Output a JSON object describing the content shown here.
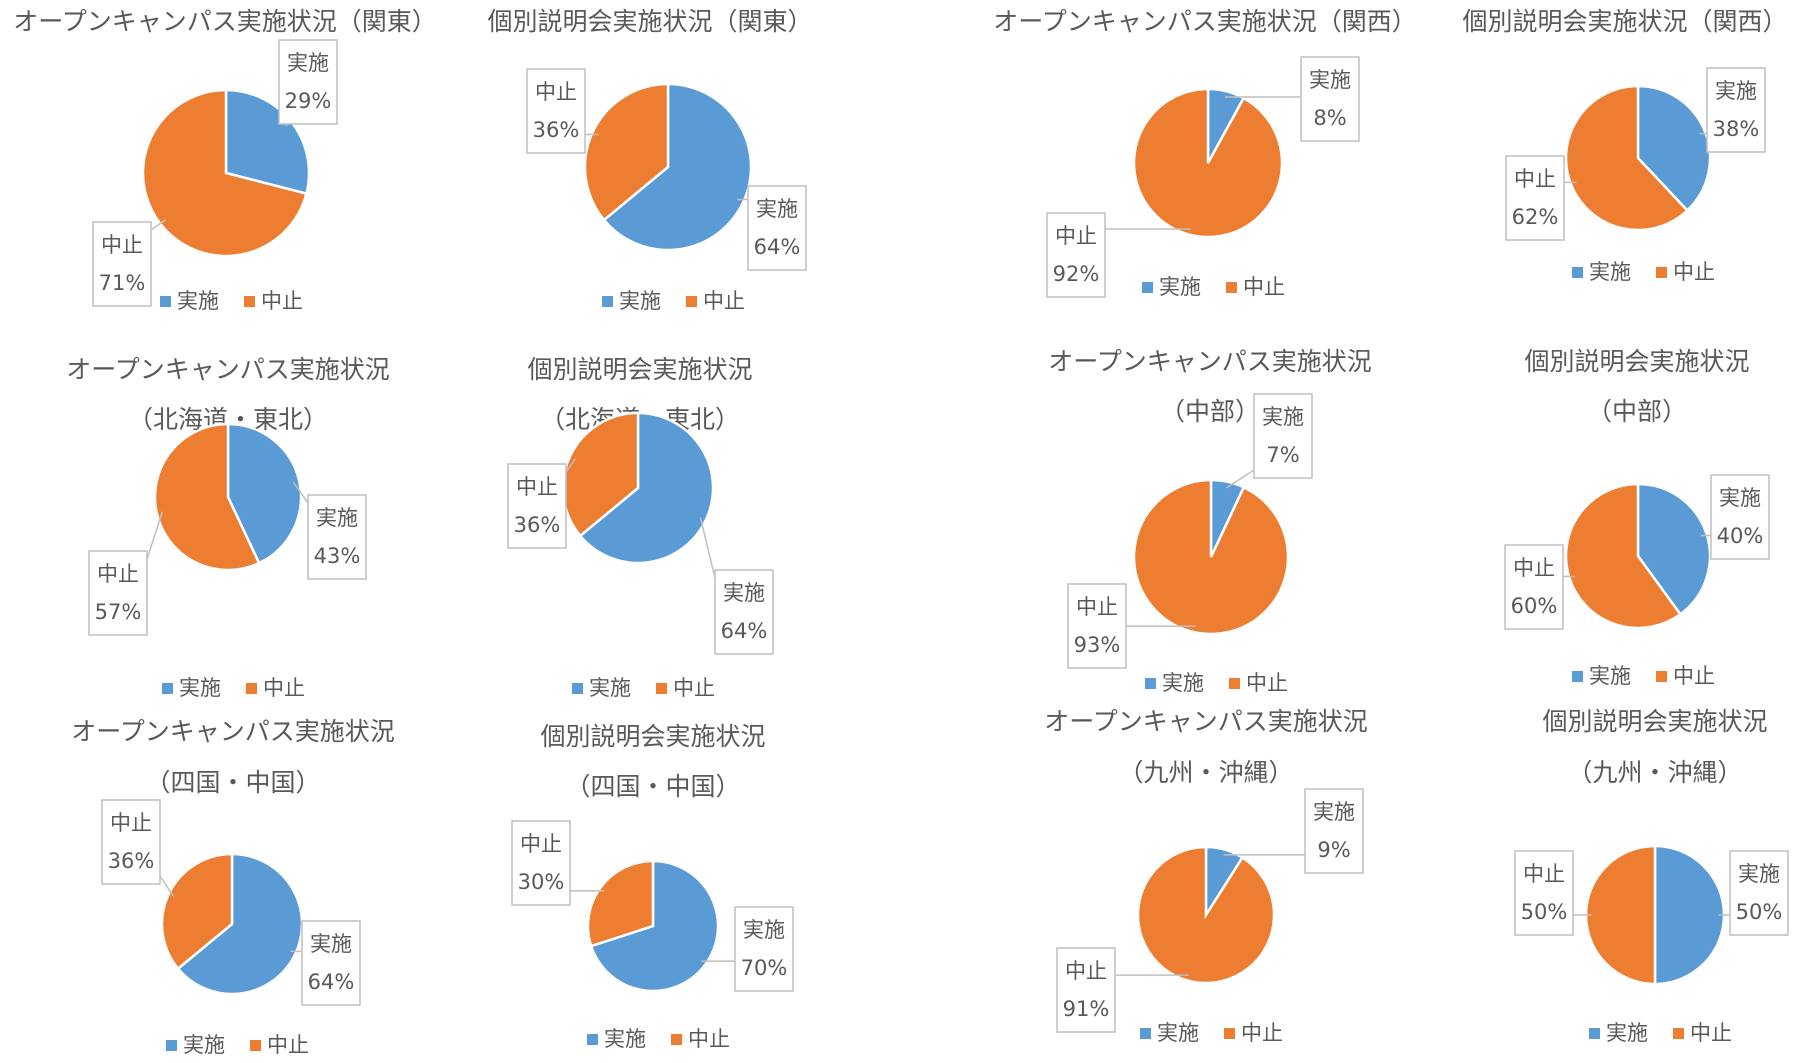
{
  "colors": {
    "series_jisshi": "#5b9bd5",
    "series_chushi": "#ed7d31"
  },
  "chart_data": [
    {
      "type": "pie",
      "title_lines": [
        "オープンキャンパス実施状況（関東）"
      ],
      "categories": [
        "実施",
        "中止"
      ],
      "values": [
        29,
        71
      ],
      "labels": [
        "29%",
        "71%"
      ],
      "legend": [
        "実施",
        "中止"
      ],
      "legend_position": "bottom"
    },
    {
      "type": "pie",
      "title_lines": [
        "個別説明会実施状況（関東）"
      ],
      "categories": [
        "実施",
        "中止"
      ],
      "values": [
        64,
        36
      ],
      "labels": [
        "64%",
        "36%"
      ],
      "legend": [
        "実施",
        "中止"
      ],
      "legend_position": "bottom"
    },
    {
      "type": "pie",
      "title_lines": [
        "オープンキャンパス実施状況（関西）"
      ],
      "categories": [
        "実施",
        "中止"
      ],
      "values": [
        8,
        92
      ],
      "labels": [
        "8%",
        "92%"
      ],
      "legend": [
        "実施",
        "中止"
      ],
      "legend_position": "bottom"
    },
    {
      "type": "pie",
      "title_lines": [
        "個別説明会実施状況（関西）"
      ],
      "categories": [
        "実施",
        "中止"
      ],
      "values": [
        38,
        62
      ],
      "labels": [
        "38%",
        "62%"
      ],
      "legend": [
        "実施",
        "中止"
      ],
      "legend_position": "bottom"
    },
    {
      "type": "pie",
      "title_lines": [
        "オープンキャンパス実施状況",
        "（北海道・東北）"
      ],
      "categories": [
        "実施",
        "中止"
      ],
      "values": [
        43,
        57
      ],
      "labels": [
        "43%",
        "57%"
      ],
      "legend": [
        "実施",
        "中止"
      ],
      "legend_position": "bottom"
    },
    {
      "type": "pie",
      "title_lines": [
        "個別説明会実施状況",
        "（北海道・東北）"
      ],
      "categories": [
        "実施",
        "中止"
      ],
      "values": [
        64,
        36
      ],
      "labels": [
        "64%",
        "36%"
      ],
      "legend": [
        "実施",
        "中止"
      ],
      "legend_position": "bottom"
    },
    {
      "type": "pie",
      "title_lines": [
        "オープンキャンパス実施状況",
        "（中部）"
      ],
      "categories": [
        "実施",
        "中止"
      ],
      "values": [
        7,
        93
      ],
      "labels": [
        "7%",
        "93%"
      ],
      "legend": [
        "実施",
        "中止"
      ],
      "legend_position": "bottom"
    },
    {
      "type": "pie",
      "title_lines": [
        "個別説明会実施状況",
        "（中部）"
      ],
      "categories": [
        "実施",
        "中止"
      ],
      "values": [
        40,
        60
      ],
      "labels": [
        "40%",
        "60%"
      ],
      "legend": [
        "実施",
        "中止"
      ],
      "legend_position": "bottom"
    },
    {
      "type": "pie",
      "title_lines": [
        "オープンキャンパス実施状況",
        "（四国・中国）"
      ],
      "categories": [
        "実施",
        "中止"
      ],
      "values": [
        64,
        36
      ],
      "labels": [
        "64%",
        "36%"
      ],
      "legend": [
        "実施",
        "中止"
      ],
      "legend_position": "bottom"
    },
    {
      "type": "pie",
      "title_lines": [
        "個別説明会実施状況",
        "（四国・中国）"
      ],
      "categories": [
        "実施",
        "中止"
      ],
      "values": [
        70,
        30
      ],
      "labels": [
        "70%",
        "30%"
      ],
      "legend": [
        "実施",
        "中止"
      ],
      "legend_position": "bottom"
    },
    {
      "type": "pie",
      "title_lines": [
        "オープンキャンパス実施状況",
        "（九州・沖縄）"
      ],
      "categories": [
        "実施",
        "中止"
      ],
      "values": [
        9,
        91
      ],
      "labels": [
        "9%",
        "91%"
      ],
      "legend": [
        "実施",
        "中止"
      ],
      "legend_position": "bottom"
    },
    {
      "type": "pie",
      "title_lines": [
        "個別説明会実施状況",
        "（九州・沖縄）"
      ],
      "categories": [
        "実施",
        "中止"
      ],
      "values": [
        50,
        50
      ],
      "labels": [
        "50%",
        "50%"
      ],
      "legend": [
        "実施",
        "中止"
      ],
      "legend_position": "bottom"
    }
  ]
}
